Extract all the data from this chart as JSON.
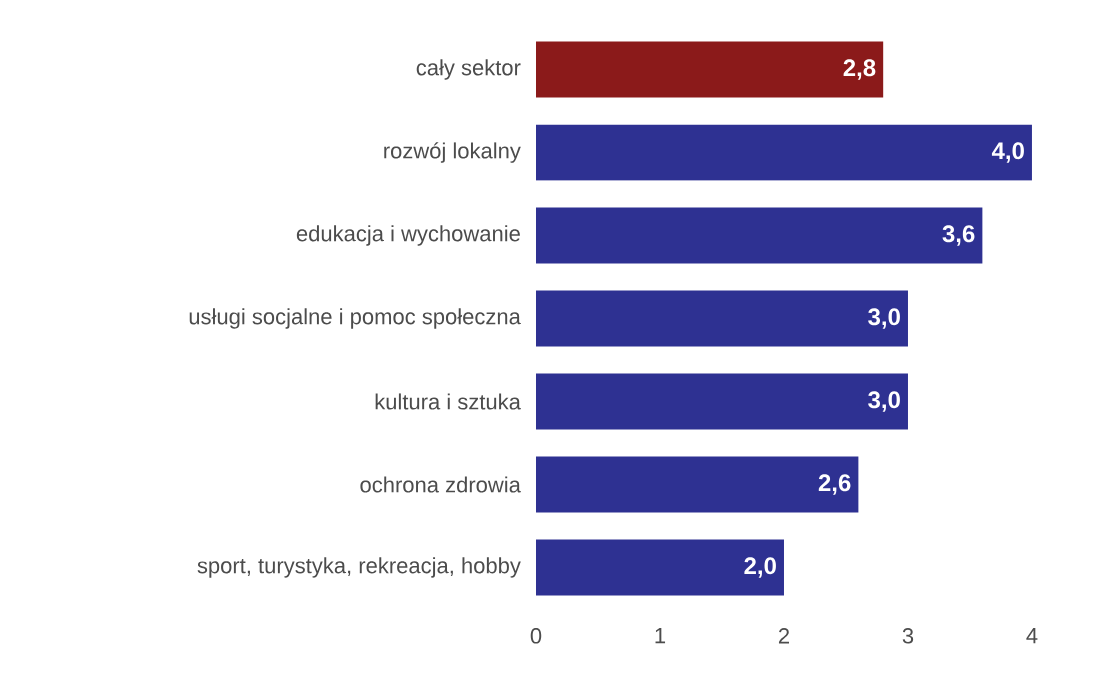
{
  "chart_data": {
    "type": "bar",
    "orientation": "horizontal",
    "categories": [
      "cały sektor",
      "rozwój lokalny",
      "edukacja i wychowanie",
      "usługi socjalne i pomoc społeczna",
      "kultura i sztuka",
      "ochrona zdrowia",
      "sport, turystyka, rekreacja, hobby"
    ],
    "values": [
      2.8,
      4.0,
      3.6,
      3.0,
      3.0,
      2.6,
      2.0
    ],
    "colors": [
      "#8b1a1a",
      "#2e3192",
      "#2e3192",
      "#2e3192",
      "#2e3192",
      "#2e3192",
      "#2e3192"
    ],
    "value_labels": [
      "2,8",
      "4,0",
      "3,6",
      "3,0",
      "3,0",
      "2,6",
      "2,0"
    ],
    "xlim": [
      0,
      4
    ],
    "xticks": [
      0,
      1,
      2,
      3,
      4
    ]
  }
}
